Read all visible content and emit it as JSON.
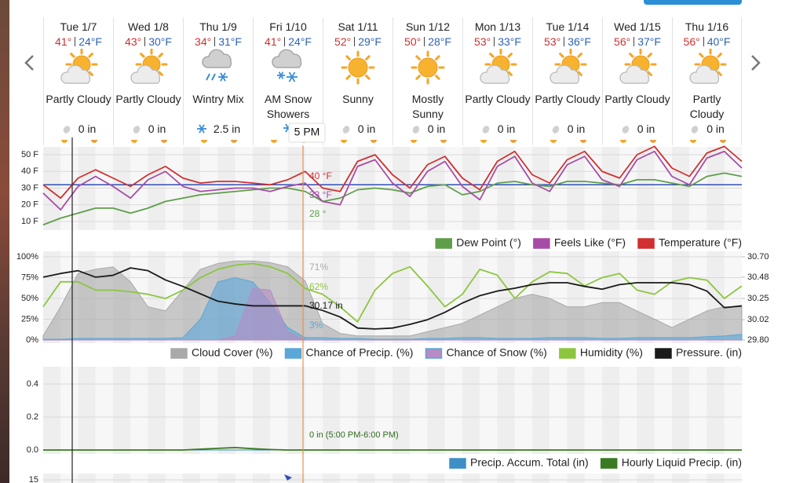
{
  "cursor_time": "5 PM",
  "days": [
    {
      "date": "Tue 1/7",
      "high": "41°",
      "low": "24°F",
      "condition": "Partly Cloudy",
      "precip": "0 in"
    },
    {
      "date": "Wed 1/8",
      "high": "43°",
      "low": "30°F",
      "condition": "Partly Cloudy",
      "precip": "0 in"
    },
    {
      "date": "Thu 1/9",
      "high": "34°",
      "low": "31°F",
      "condition": "Wintry Mix",
      "precip": "2.5 in"
    },
    {
      "date": "Fri 1/10",
      "high": "41°",
      "low": "24°F",
      "condition": "AM Snow Showers"
    },
    {
      "date": "Sat 1/11",
      "high": "52°",
      "low": "29°F",
      "condition": "Sunny",
      "precip": "0 in"
    },
    {
      "date": "Sun 1/12",
      "high": "50°",
      "low": "28°F",
      "condition": "Mostly Sunny",
      "precip": "0 in"
    },
    {
      "date": "Mon 1/13",
      "high": "53°",
      "low": "33°F",
      "condition": "Partly Cloudy",
      "precip": "0 in"
    },
    {
      "date": "Tue 1/14",
      "high": "53°",
      "low": "36°F",
      "condition": "Partly Cloudy",
      "precip": "0 in"
    },
    {
      "date": "Wed 1/15",
      "high": "56°",
      "low": "37°F",
      "condition": "Partly Cloudy",
      "precip": "0 in"
    },
    {
      "date": "Thu 1/16",
      "high": "56°",
      "low": "40°F",
      "condition": "Partly Cloudy",
      "precip": "0 in"
    }
  ],
  "charts": [
    {
      "type": "line",
      "ylim": [
        5,
        56
      ],
      "yticks": [
        {
          "value": 10,
          "label": "10 F"
        },
        {
          "value": 20,
          "label": "20 F"
        },
        {
          "value": 30,
          "label": "30 F"
        },
        {
          "value": 40,
          "label": "40 F"
        },
        {
          "value": 50,
          "label": "50 F"
        }
      ],
      "reference_line": 32,
      "reference_color": "#2f4fb5",
      "series": [
        {
          "name": "Dew Point (°)",
          "color": "#5e9e4a",
          "kind": "line",
          "cursor_label": "28 °",
          "values": [
            8,
            12,
            15,
            18,
            18,
            15,
            18,
            22,
            24,
            26,
            27,
            28,
            29,
            30,
            30,
            28,
            22,
            24,
            29,
            30,
            29,
            27,
            31,
            32,
            26,
            28,
            33,
            34,
            32,
            31,
            34,
            34,
            33,
            32,
            35,
            35,
            33,
            31,
            37,
            39,
            37
          ]
        },
        {
          "name": "Feels Like (°F)",
          "color": "#a64ca6",
          "kind": "line",
          "cursor_label": "33 °F",
          "values": [
            27,
            17,
            31,
            37,
            31,
            24,
            35,
            40,
            31,
            28,
            29,
            30,
            30,
            28,
            31,
            33,
            22,
            20,
            43,
            47,
            33,
            25,
            40,
            46,
            31,
            23,
            43,
            49,
            33,
            28,
            44,
            49,
            35,
            31,
            47,
            52,
            37,
            32,
            48,
            52,
            42
          ]
        },
        {
          "name": "Temperature (°F)",
          "color": "#d03030",
          "kind": "line",
          "cursor_label": "40 °F",
          "values": [
            32,
            24,
            36,
            41,
            36,
            31,
            38,
            43,
            36,
            33,
            34,
            34,
            33,
            32,
            35,
            40,
            30,
            28,
            46,
            50,
            38,
            30,
            44,
            49,
            36,
            29,
            46,
            52,
            38,
            33,
            47,
            52,
            40,
            36,
            50,
            55,
            42,
            37,
            51,
            55,
            46
          ]
        }
      ]
    },
    {
      "type": "line",
      "ylim": [
        0,
        100
      ],
      "yticks": [
        {
          "value": 0,
          "label": "0%"
        },
        {
          "value": 25,
          "label": "25%"
        },
        {
          "value": 50,
          "label": "50%"
        },
        {
          "value": 75,
          "label": "75%"
        },
        {
          "value": 100,
          "label": "100%"
        }
      ],
      "y2lim": [
        29.8,
        30.7
      ],
      "y2ticks": [
        {
          "value": 29.8,
          "label": "29.80"
        },
        30.02,
        30.25,
        30.48,
        {
          "value": 30.7,
          "label": "30.70"
        }
      ],
      "series": [
        {
          "name": "Cloud Cover (%)",
          "color": "#a9a9a9",
          "kind": "area",
          "cursor_label": "71%",
          "values": [
            5,
            40,
            80,
            85,
            88,
            70,
            40,
            35,
            60,
            85,
            92,
            95,
            95,
            93,
            88,
            71,
            20,
            8,
            5,
            5,
            5,
            5,
            10,
            15,
            20,
            30,
            40,
            50,
            55,
            50,
            40,
            40,
            45,
            45,
            35,
            25,
            15,
            25,
            35,
            40,
            40
          ]
        },
        {
          "name": "Chance of Precip. (%)",
          "color": "#5aa7d8",
          "kind": "area",
          "cursor_label": "3%",
          "values": [
            1,
            1,
            2,
            2,
            2,
            2,
            2,
            2,
            3,
            25,
            70,
            75,
            70,
            45,
            15,
            3,
            3,
            2,
            2,
            1,
            1,
            1,
            2,
            2,
            3,
            3,
            2,
            2,
            2,
            3,
            3,
            3,
            2,
            2,
            3,
            3,
            3,
            3,
            4,
            5,
            7
          ]
        },
        {
          "name": "Chance of Snow (%)",
          "color": "#b58cc4",
          "kind": "area",
          "values": [
            0,
            0,
            0,
            0,
            0,
            0,
            0,
            0,
            0,
            0,
            0,
            5,
            62,
            60,
            10,
            0,
            0,
            0,
            0,
            0,
            0,
            0,
            0,
            0,
            0,
            0,
            0,
            0,
            0,
            0,
            0,
            0,
            0,
            0,
            0,
            0,
            0,
            0,
            0,
            0,
            0
          ]
        },
        {
          "name": "Humidity (%)",
          "color": "#8cc63f",
          "kind": "line",
          "cursor_label": "62%",
          "values": [
            40,
            70,
            70,
            60,
            60,
            58,
            55,
            50,
            60,
            75,
            85,
            90,
            92,
            88,
            80,
            62,
            55,
            40,
            22,
            60,
            80,
            88,
            65,
            40,
            55,
            85,
            78,
            50,
            70,
            82,
            80,
            65,
            75,
            80,
            60,
            55,
            70,
            75,
            72,
            50,
            65
          ]
        },
        {
          "name": "Pressure. (in)",
          "color": "#1a1a1a",
          "kind": "line",
          "axis": "y2",
          "cursor_label": "30.17 in",
          "values": [
            30.48,
            30.52,
            30.55,
            30.48,
            30.5,
            30.58,
            30.55,
            30.45,
            30.38,
            30.3,
            30.22,
            30.19,
            30.17,
            30.17,
            30.17,
            30.17,
            30.12,
            30.05,
            29.93,
            29.92,
            29.93,
            29.97,
            30.02,
            30.1,
            30.2,
            30.28,
            30.33,
            30.36,
            30.4,
            30.42,
            30.42,
            30.38,
            30.35,
            30.4,
            30.42,
            30.42,
            30.42,
            30.4,
            30.33,
            30.15,
            30.17
          ]
        }
      ]
    },
    {
      "type": "line",
      "ylim": [
        -0.04,
        0.5
      ],
      "yticks": [
        {
          "value": 0,
          "label": "0.0"
        },
        0.2,
        0.4
      ],
      "annotation": "0 in (5:00 PM-6:00 PM)",
      "series": [
        {
          "name": "Precip. Accum. Total (in)",
          "color": "#3d8fc6",
          "kind": "area",
          "values": [
            0,
            0,
            0,
            0,
            0,
            0,
            0,
            0,
            0,
            0,
            0,
            0,
            0,
            0,
            0,
            0,
            0,
            0,
            0,
            0,
            0,
            0,
            0,
            0,
            0,
            0,
            0,
            0,
            0,
            0,
            0,
            0,
            0,
            0,
            0,
            0,
            0,
            0,
            0,
            0,
            0
          ]
        },
        {
          "name": "Hourly Liquid Precip. (in)",
          "color": "#3a7a22",
          "kind": "line",
          "values": [
            0,
            0,
            0,
            0,
            0,
            0,
            0,
            0,
            0,
            0.005,
            0.01,
            0.015,
            0.008,
            0.003,
            0,
            0,
            0,
            0,
            0,
            0,
            0,
            0,
            0,
            0,
            0,
            0,
            0,
            0,
            0,
            0,
            0,
            0,
            0,
            0,
            0,
            0,
            0,
            0,
            0,
            0,
            0
          ]
        }
      ]
    },
    {
      "yticks": [
        15
      ]
    }
  ]
}
